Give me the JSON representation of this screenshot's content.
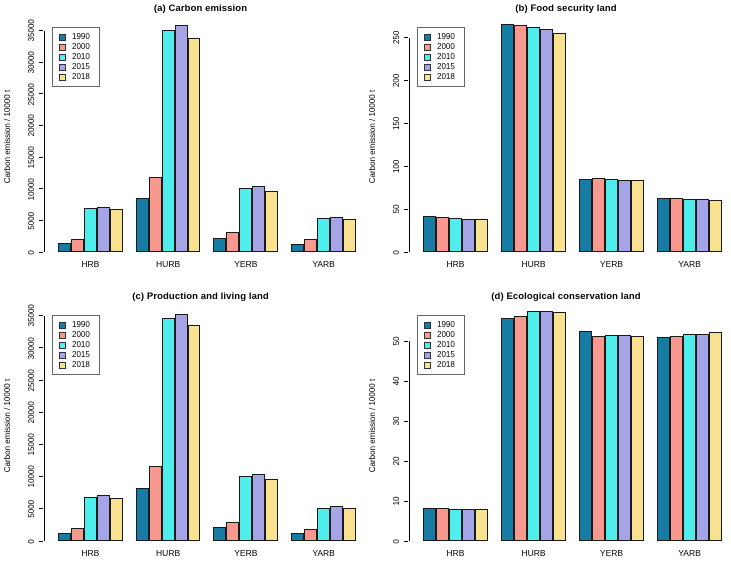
{
  "colors": {
    "series": [
      "#177CA4",
      "#F9988F",
      "#4FEEEC",
      "#A4A4E6",
      "#F8E28F"
    ],
    "bar_border": "#1a1a1a",
    "axis": "#000000",
    "background": "#ffffff"
  },
  "chart_data": [
    {
      "type": "bar",
      "title": "(a) Carbon emission",
      "ylabel": "Carbon emission / 10000 t",
      "categories": [
        "HRB",
        "HURB",
        "YERB",
        "YARB"
      ],
      "series": [
        {
          "name": "1990",
          "values": [
            1400,
            8500,
            2200,
            1300
          ]
        },
        {
          "name": "2000",
          "values": [
            2100,
            11900,
            3100,
            2000
          ]
        },
        {
          "name": "2010",
          "values": [
            6900,
            35100,
            10200,
            5300
          ]
        },
        {
          "name": "2015",
          "values": [
            7100,
            35900,
            10500,
            5500
          ]
        },
        {
          "name": "2018",
          "values": [
            6800,
            33900,
            9700,
            5200
          ]
        }
      ],
      "yticks": [
        0,
        5000,
        10000,
        15000,
        20000,
        25000,
        30000,
        35000
      ],
      "ylim": [
        0,
        37000
      ],
      "legend_position": "topleft",
      "grid": false
    },
    {
      "type": "bar",
      "title": "(b) Food security land",
      "ylabel": "Carbon emission / 10000 t",
      "categories": [
        "HRB",
        "HURB",
        "YERB",
        "YARB"
      ],
      "series": [
        {
          "name": "1990",
          "values": [
            42,
            266,
            85,
            63
          ]
        },
        {
          "name": "2000",
          "values": [
            41,
            265,
            86,
            63.5
          ]
        },
        {
          "name": "2010",
          "values": [
            40,
            262,
            85,
            62
          ]
        },
        {
          "name": "2015",
          "values": [
            39,
            260,
            84.5,
            62
          ]
        },
        {
          "name": "2018",
          "values": [
            38,
            255,
            84,
            61
          ]
        }
      ],
      "yticks": [
        0,
        50,
        100,
        150,
        200,
        250
      ],
      "ylim": [
        0,
        273
      ],
      "legend_position": "topleft",
      "grid": false
    },
    {
      "type": "bar",
      "title": "(c) Production and living land",
      "ylabel": "Carbon emission / 10000 t",
      "categories": [
        "HRB",
        "HURB",
        "YERB",
        "YARB"
      ],
      "series": [
        {
          "name": "1990",
          "values": [
            1300,
            8200,
            2100,
            1200
          ]
        },
        {
          "name": "2000",
          "values": [
            2000,
            11700,
            3000,
            1900
          ]
        },
        {
          "name": "2010",
          "values": [
            6800,
            34600,
            10100,
            5200
          ]
        },
        {
          "name": "2015",
          "values": [
            7100,
            35300,
            10400,
            5400
          ]
        },
        {
          "name": "2018",
          "values": [
            6700,
            33600,
            9600,
            5100
          ]
        }
      ],
      "yticks": [
        0,
        5000,
        10000,
        15000,
        20000,
        25000,
        30000,
        35000
      ],
      "ylim": [
        0,
        36500
      ],
      "legend_position": "topleft",
      "grid": false
    },
    {
      "type": "bar",
      "title": "(d) Ecological conservation land",
      "ylabel": "Carbon emission / 10000 t",
      "categories": [
        "HRB",
        "HURB",
        "YERB",
        "YARB"
      ],
      "series": [
        {
          "name": "1990",
          "values": [
            8.3,
            55.9,
            52.5,
            51.0
          ]
        },
        {
          "name": "2000",
          "values": [
            8.3,
            56.2,
            51.3,
            51.2
          ]
        },
        {
          "name": "2010",
          "values": [
            8.0,
            57.5,
            51.6,
            51.8
          ]
        },
        {
          "name": "2015",
          "values": [
            8.0,
            57.5,
            51.6,
            51.8
          ]
        },
        {
          "name": "2018",
          "values": [
            8.1,
            57.4,
            51.3,
            52.2
          ]
        }
      ],
      "yticks": [
        0,
        10,
        20,
        30,
        40,
        50
      ],
      "ylim": [
        0,
        58.8
      ],
      "legend_position": "topleft",
      "grid": false
    }
  ]
}
